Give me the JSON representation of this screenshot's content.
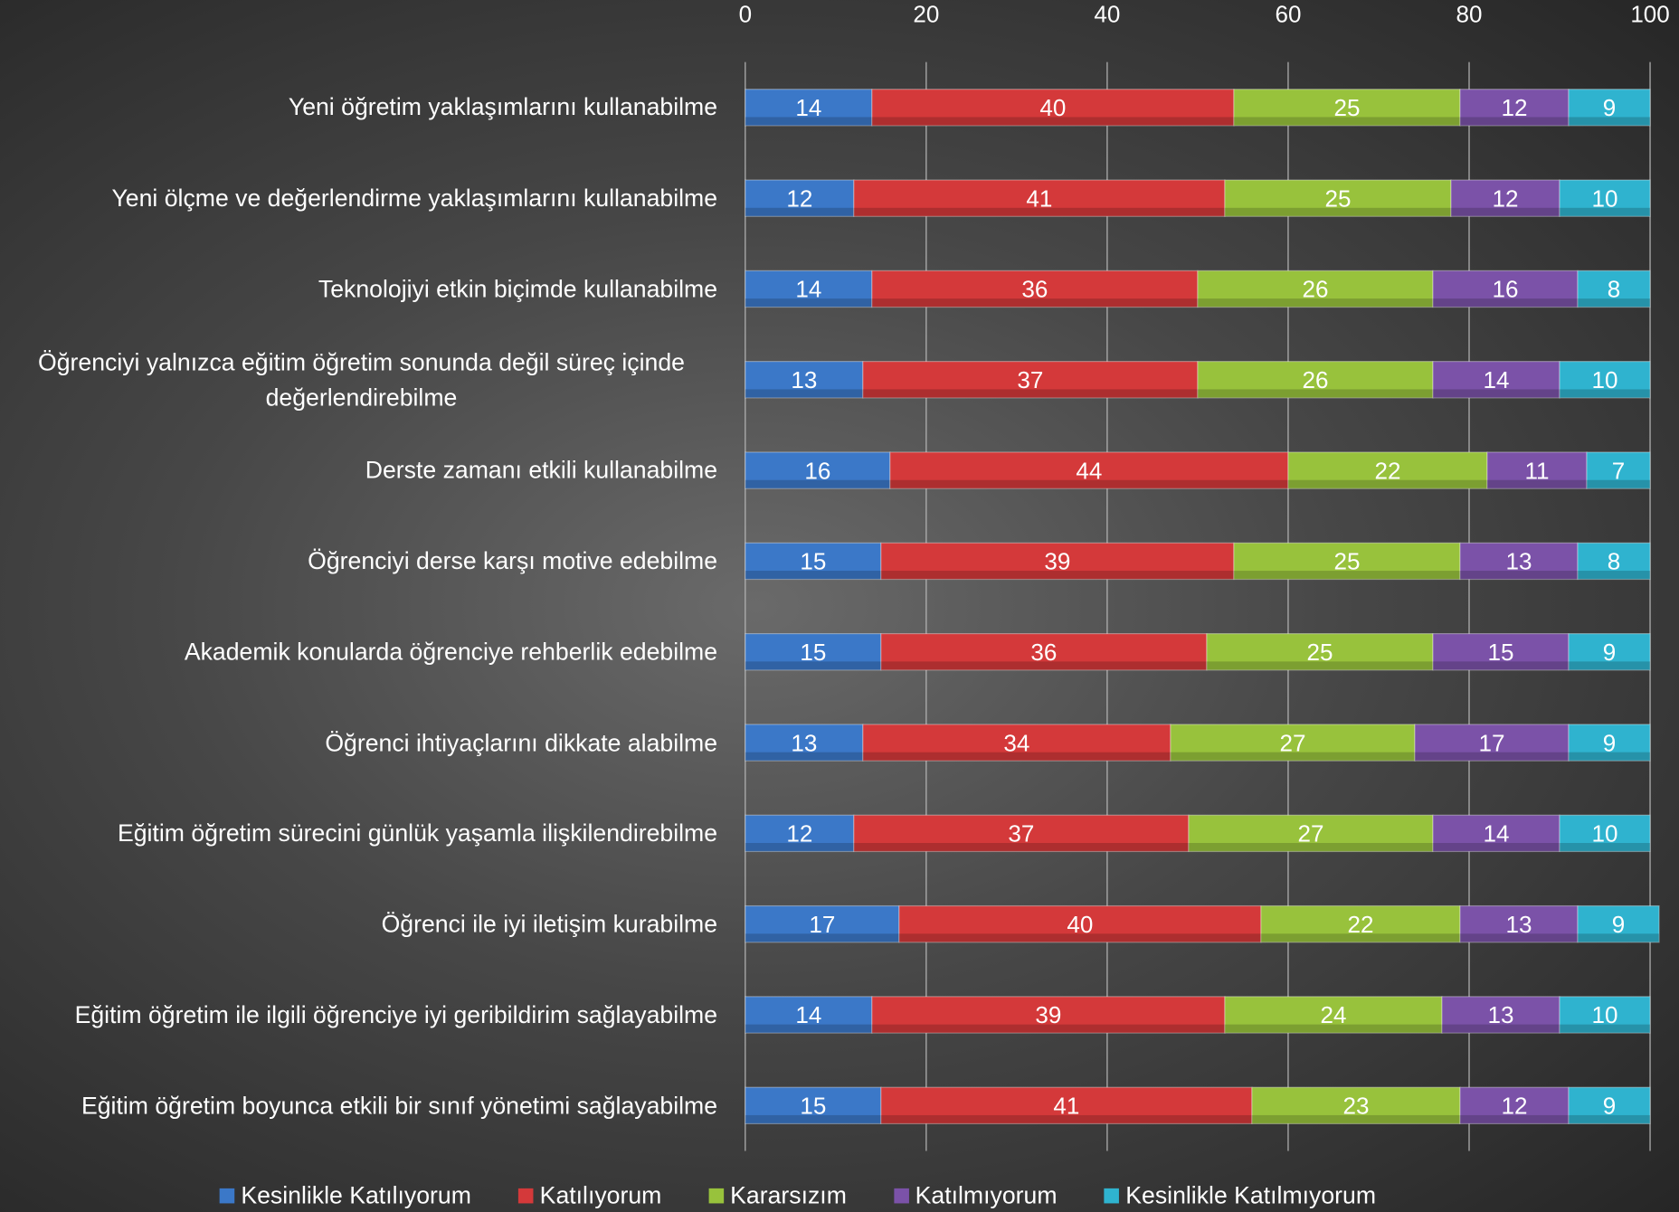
{
  "chart_data": {
    "type": "stacked-bar-horizontal",
    "categories": [
      "Yeni öğretim yaklaşımlarını kullanabilme",
      "Yeni ölçme ve değerlendirme yaklaşımlarını kullanabilme",
      "Teknolojiyi etkin  biçimde kullanabilme",
      "Öğrenciyi yalnızca eğitim öğretim sonunda değil süreç içinde değerlendirebilme",
      "Derste zamanı etkili kullanabilme",
      "Öğrenciyi derse karşı motive edebilme",
      "Akademik konularda öğrenciye rehberlik edebilme",
      "Öğrenci ihtiyaçlarını dikkate alabilme",
      "Eğitim öğretim sürecini günlük yaşamla ilişkilendirebilme",
      "Öğrenci ile iyi iletişim kurabilme",
      "Eğitim öğretim ile ilgili öğrenciye iyi geribildirim sağlayabilme",
      "Eğitim öğretim boyunca etkili bir sınıf yönetimi sağlayabilme"
    ],
    "series": [
      {
        "name": "Kesinlikle Katılıyorum",
        "color": "#3b78c8",
        "values": [
          14,
          12,
          14,
          13,
          16,
          15,
          15,
          13,
          12,
          17,
          14,
          15
        ]
      },
      {
        "name": "Katılıyorum",
        "color": "#d4393a",
        "values": [
          40,
          41,
          36,
          37,
          44,
          39,
          36,
          34,
          37,
          40,
          39,
          41
        ]
      },
      {
        "name": "Kararsızım",
        "color": "#98c23c",
        "values": [
          25,
          25,
          26,
          26,
          22,
          25,
          25,
          27,
          27,
          22,
          24,
          23
        ]
      },
      {
        "name": "Katılmıyorum",
        "color": "#7b52a8",
        "values": [
          12,
          12,
          16,
          14,
          11,
          13,
          15,
          17,
          14,
          13,
          13,
          12
        ]
      },
      {
        "name": "Kesinlikle Katılmıyorum",
        "color": "#2fb3cf",
        "values": [
          9,
          10,
          8,
          10,
          7,
          8,
          9,
          9,
          10,
          9,
          10,
          9
        ]
      }
    ],
    "xlim": [
      0,
      100
    ],
    "xticks": [
      0,
      20,
      40,
      60,
      80,
      100
    ],
    "grid": true,
    "legend": "bottom"
  }
}
